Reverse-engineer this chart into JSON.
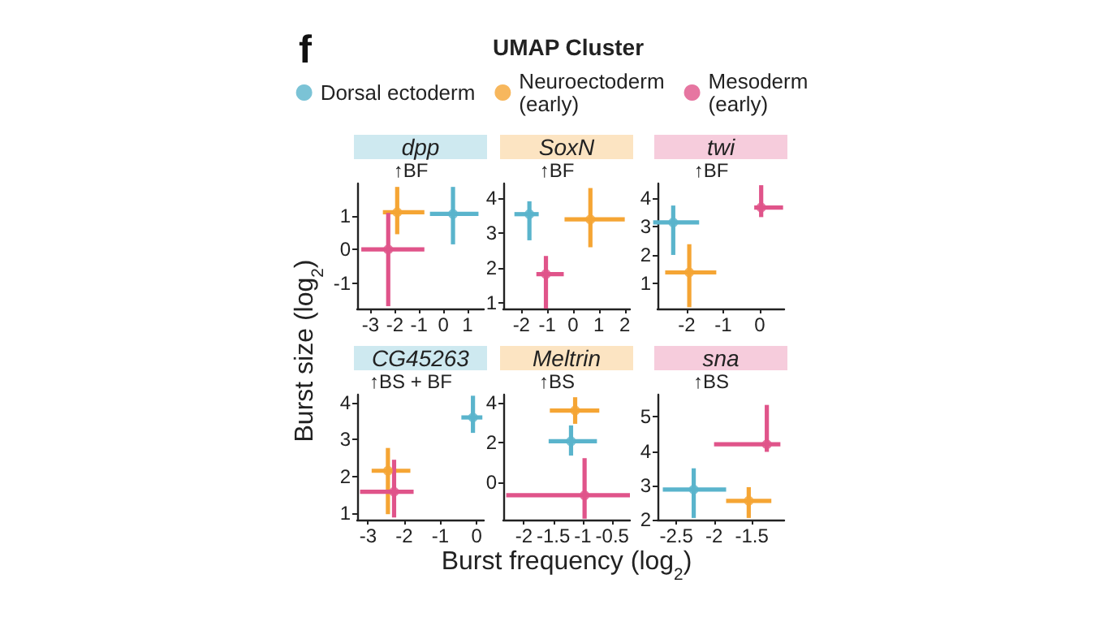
{
  "chart_data": [
    {
      "type": "scatter",
      "title": "dpp",
      "annotations": [
        "↑BF",
        "f"
      ],
      "legend": "top",
      "legend_title": "UMAP Cluster",
      "ylabel": "Burst size (log$_{2}$)",
      "xlim": [
        -3.55,
        1.67
      ],
      "xticks": [
        -3,
        -2,
        -1,
        0,
        1
      ],
      "ylim": [
        -1.75,
        1.95
      ],
      "yticks": [
        -1,
        0,
        1
      ],
      "series": [
        {
          "name": "Dorsal ectoderm",
          "color": "#5ab4cc",
          "x": [
            0.4
          ],
          "values": [
            1.05
          ],
          "xerrors": [
            [
              -0.55,
              1.45
            ]
          ],
          "errors": [
            [
              0.15,
              1.85
            ]
          ]
        },
        {
          "name": "Neuroectoderm\n(early)",
          "color": "#f5a534",
          "x": [
            -1.9
          ],
          "values": [
            1.1
          ],
          "xerrors": [
            [
              -2.49,
              -0.78
            ]
          ],
          "errors": [
            [
              0.45,
              1.85
            ]
          ]
        },
        {
          "name": "Mesoderm\n(early)",
          "color": "#e0548a",
          "x": [
            -2.27
          ],
          "values": [
            0
          ],
          "xerrors": [
            [
              -3.38,
              -0.78
            ]
          ],
          "errors": [
            [
              -1.68,
              1.08
            ]
          ]
        }
      ]
    },
    {
      "type": "scatter",
      "title": "SoxN",
      "annotations": [
        "↑BF"
      ],
      "xlim": [
        -2.7,
        2.2
      ],
      "xticks": [
        -2,
        -1,
        0,
        1,
        2
      ],
      "ylim": [
        0.84,
        4.43
      ],
      "yticks": [
        1,
        2,
        3,
        4
      ],
      "series": [
        {
          "color": "#5ab4cc",
          "x": [
            -1.69
          ],
          "values": [
            3.55
          ],
          "xerrors": [
            [
              -2.27,
              -1.33
            ]
          ],
          "errors": [
            [
              2.8,
              3.92
            ]
          ]
        },
        {
          "color": "#f5a534",
          "x": [
            0.67
          ],
          "values": [
            3.4
          ],
          "xerrors": [
            [
              -0.33,
              2.0
            ]
          ],
          "errors": [
            [
              2.6,
              4.3
            ]
          ]
        },
        {
          "color": "#e0548a",
          "x": [
            -1.05
          ],
          "values": [
            1.83
          ],
          "xerrors": [
            [
              -1.42,
              -0.36
            ]
          ],
          "errors": [
            [
              0.84,
              2.35
            ]
          ]
        }
      ]
    },
    {
      "type": "scatter",
      "title": "twi",
      "annotations": [
        "↑BF"
      ],
      "xlim": [
        -2.8,
        0.67
      ],
      "xticks": [
        -2,
        -1,
        0
      ],
      "ylim": [
        0.1,
        4.53
      ],
      "yticks": [
        1,
        2,
        3,
        4
      ],
      "series": [
        {
          "color": "#5ab4cc",
          "x": [
            -2.37
          ],
          "values": [
            3.15
          ],
          "xerrors": [
            [
              -2.92,
              -1.66
            ]
          ],
          "errors": [
            [
              2.0,
              3.75
            ]
          ]
        },
        {
          "color": "#f5a534",
          "x": [
            -1.93
          ],
          "values": [
            1.38
          ],
          "xerrors": [
            [
              -2.59,
              -1.19
            ]
          ],
          "errors": [
            [
              0.15,
              2.38
            ]
          ]
        },
        {
          "color": "#e0548a",
          "x": [
            0.04
          ],
          "values": [
            3.68
          ],
          "xerrors": [
            [
              -0.15,
              0.64
            ]
          ],
          "errors": [
            [
              3.34,
              4.47
            ]
          ]
        }
      ]
    },
    {
      "type": "scatter",
      "title": "CG45263",
      "annotations": [
        "↑BS + BF"
      ],
      "xlim": [
        -3.3,
        0.2
      ],
      "xticks": [
        -3,
        -2,
        -1,
        0
      ],
      "ylim": [
        0.82,
        4.22
      ],
      "yticks": [
        1,
        2,
        3,
        4
      ],
      "series": [
        {
          "color": "#5ab4cc",
          "x": [
            -0.1
          ],
          "values": [
            3.6
          ],
          "xerrors": [
            [
              -0.42,
              0.16
            ]
          ],
          "errors": [
            [
              3.18,
              4.19
            ]
          ]
        },
        {
          "color": "#f5a534",
          "x": [
            -2.45
          ],
          "values": [
            2.15
          ],
          "xerrors": [
            [
              -2.9,
              -1.83
            ]
          ],
          "errors": [
            [
              0.97,
              2.77
            ]
          ]
        },
        {
          "color": "#e0548a",
          "x": [
            -2.28
          ],
          "values": [
            1.58
          ],
          "xerrors": [
            [
              -3.22,
              -1.74
            ]
          ],
          "errors": [
            [
              0.88,
              2.45
            ]
          ]
        }
      ]
    },
    {
      "type": "scatter",
      "title": "Meltrin",
      "annotations": [
        "↑BS"
      ],
      "xlabel": "Burst frequency (log$_{2}$)",
      "xlim": [
        -2.35,
        -0.2
      ],
      "xticks": [
        -2,
        -1.5,
        -1,
        -0.5
      ],
      "ylim": [
        -1.9,
        4.4
      ],
      "yticks": [
        0,
        2,
        4
      ],
      "series": [
        {
          "color": "#5ab4cc",
          "x": [
            -1.2
          ],
          "values": [
            2.05
          ],
          "xerrors": [
            [
              -1.58,
              -0.76
            ]
          ],
          "errors": [
            [
              1.33,
              2.85
            ]
          ]
        },
        {
          "color": "#f5a534",
          "x": [
            -1.13
          ],
          "values": [
            3.6
          ],
          "xerrors": [
            [
              -1.56,
              -0.72
            ]
          ],
          "errors": [
            [
              2.93,
              4.27
            ]
          ]
        },
        {
          "color": "#e0548a",
          "x": [
            -0.97
          ],
          "values": [
            -0.67
          ],
          "xerrors": [
            [
              -2.3,
              -0.2
            ]
          ],
          "errors": [
            [
              -1.85,
              1.2
            ]
          ]
        }
      ]
    },
    {
      "type": "scatter",
      "title": "sna",
      "annotations": [
        "↑BS"
      ],
      "xlim": [
        -2.75,
        -1.07
      ],
      "xticks": [
        -2.5,
        -2,
        -1.5
      ],
      "ylim": [
        2.0,
        5.65
      ],
      "yticks": [
        2,
        3,
        4,
        5
      ],
      "series": [
        {
          "color": "#5ab4cc",
          "x": [
            -2.27
          ],
          "values": [
            2.88
          ],
          "xerrors": [
            [
              -2.68,
              -1.84
            ]
          ],
          "errors": [
            [
              2.05,
              3.5
            ]
          ]
        },
        {
          "color": "#f5a534",
          "x": [
            -1.54
          ],
          "values": [
            2.55
          ],
          "xerrors": [
            [
              -1.84,
              -1.24
            ]
          ],
          "errors": [
            [
              2.05,
              2.95
            ]
          ]
        },
        {
          "color": "#e0548a",
          "x": [
            -1.3
          ],
          "values": [
            4.2
          ],
          "xerrors": [
            [
              -2.0,
              -1.12
            ]
          ],
          "errors": [
            [
              3.98,
              5.35
            ]
          ]
        }
      ]
    }
  ]
}
